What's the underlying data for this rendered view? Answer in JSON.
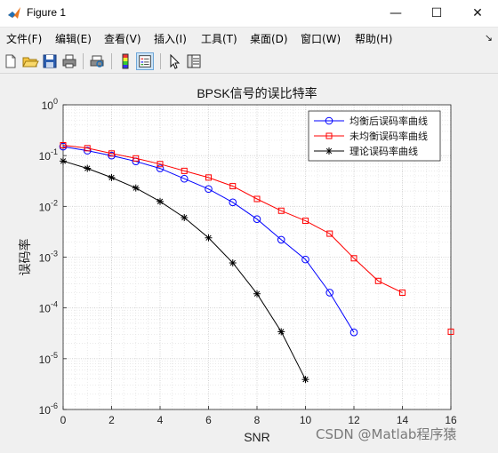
{
  "window": {
    "title": "Figure 1",
    "controls": {
      "minimize": "—",
      "maximize": "☐",
      "close": "✕"
    }
  },
  "menu": {
    "items": [
      "文件(F)",
      "编辑(E)",
      "查看(V)",
      "插入(I)",
      "工具(T)",
      "桌面(D)",
      "窗口(W)",
      "帮助(H)"
    ],
    "overflow_arrow": "↘"
  },
  "toolbar": {
    "buttons": [
      "new-figure-icon",
      "open-file-icon",
      "save-icon",
      "print-icon",
      "print-preview-icon",
      "colorbar-icon",
      "legend-icon",
      "pointer-icon",
      "property-inspector-icon"
    ]
  },
  "chart_data": {
    "type": "line",
    "title": "BPSK信号的误比特率",
    "xlabel": "SNR",
    "ylabel": "误码率",
    "xlim": [
      0,
      16
    ],
    "ylim": [
      1e-06,
      1
    ],
    "yscale": "log",
    "grid": true,
    "minor_grid": true,
    "legend_position": "top-right",
    "xticks": [
      "0",
      "2",
      "4",
      "6",
      "8",
      "10",
      "12",
      "14",
      "16"
    ],
    "yticks": [
      {
        "base": "10",
        "exp": "0"
      },
      {
        "base": "10",
        "exp": "-1"
      },
      {
        "base": "10",
        "exp": "-2"
      },
      {
        "base": "10",
        "exp": "-3"
      },
      {
        "base": "10",
        "exp": "-4"
      },
      {
        "base": "10",
        "exp": "-5"
      },
      {
        "base": "10",
        "exp": "-6"
      }
    ],
    "series": [
      {
        "name": "均衡后误码率曲线",
        "color": "#0000ff",
        "marker": "circle",
        "x": [
          0,
          1,
          2,
          3,
          4,
          5,
          6,
          7,
          8,
          9,
          10,
          11,
          12
        ],
        "y": [
          0.15,
          0.125,
          0.1,
          0.077,
          0.056,
          0.035,
          0.022,
          0.012,
          0.0056,
          0.0022,
          0.0009,
          0.0002,
          3.3e-05
        ]
      },
      {
        "name": "未均衡误码率曲线",
        "color": "#ff0000",
        "marker": "square",
        "x": [
          0,
          1,
          2,
          3,
          4,
          5,
          6,
          7,
          8,
          9,
          10,
          11,
          12,
          13,
          14,
          16
        ],
        "y": [
          0.16,
          0.14,
          0.11,
          0.088,
          0.068,
          0.05,
          0.037,
          0.025,
          0.014,
          0.0082,
          0.0052,
          0.0029,
          0.00095,
          0.00034,
          0.0002,
          3.4e-05
        ],
        "segments": [
          [
            0,
            14
          ]
        ],
        "isolated": [
          16
        ]
      },
      {
        "name": "理论误码率曲线",
        "color": "#000000",
        "marker": "asterisk",
        "x": [
          0,
          1,
          2,
          3,
          4,
          5,
          6,
          7,
          8,
          9,
          10
        ],
        "y": [
          0.078,
          0.056,
          0.037,
          0.023,
          0.0125,
          0.006,
          0.0024,
          0.00077,
          0.00019,
          3.4e-05,
          3.9e-06
        ]
      }
    ]
  },
  "watermark": "CSDN @Matlab程序猿"
}
